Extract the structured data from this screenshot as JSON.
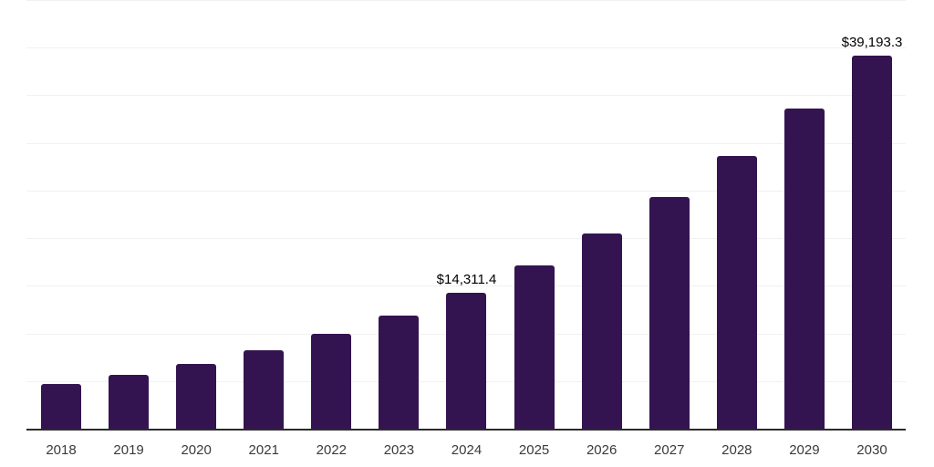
{
  "chart_data": {
    "type": "bar",
    "title": "",
    "xlabel": "",
    "ylabel": "",
    "categories": [
      "2018",
      "2019",
      "2020",
      "2021",
      "2022",
      "2023",
      "2024",
      "2025",
      "2026",
      "2027",
      "2028",
      "2029",
      "2030"
    ],
    "values": [
      4670,
      5640,
      6760,
      8200,
      9960,
      11880,
      14311.4,
      17130,
      20500,
      24320,
      28660,
      33590,
      39193.3
    ],
    "data_labels": [
      {
        "category": "2024",
        "text": "$14,311.4"
      },
      {
        "category": "2030",
        "text": "$39,193.3"
      }
    ],
    "ylim": [
      0,
      45000
    ],
    "grid_step": 5000,
    "grid": "horizontal",
    "yaxis_labels_visible": false,
    "legend": "none",
    "bar_color": "#341450",
    "gridline_color": "#f1f1f1",
    "axis_line_color": "#2b2b2b",
    "tick_label_color": "#3a3a3a",
    "data_label_color": "#000000",
    "background_color": "#ffffff"
  }
}
